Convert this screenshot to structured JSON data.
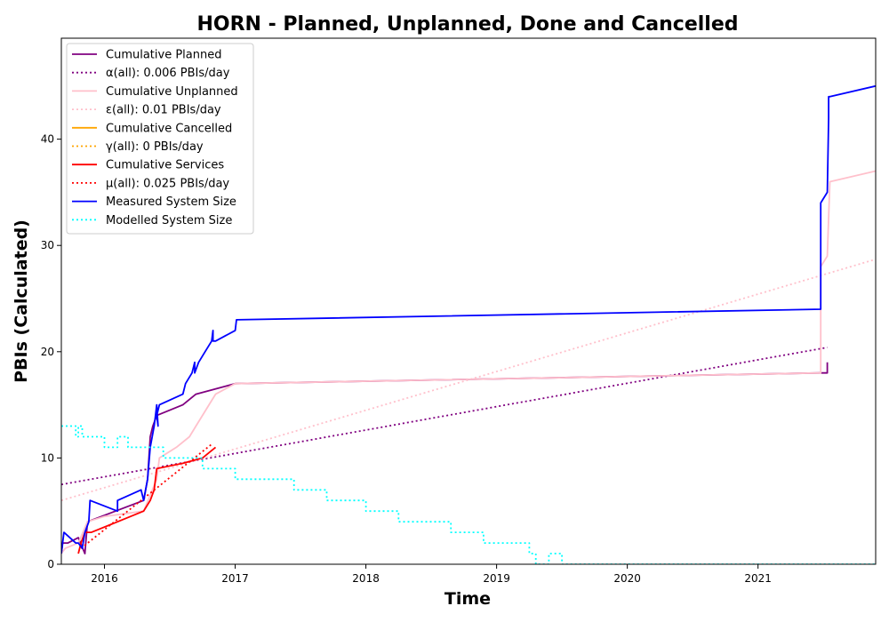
{
  "chart_data": {
    "type": "line",
    "title": "HORN - Planned, Unplanned, Done  and Cancelled",
    "xlabel": "Time",
    "ylabel": "PBIs (Calculated)",
    "xlim": [
      2015.67,
      2021.9
    ],
    "ylim": [
      0,
      49.5
    ],
    "x_ticks": [
      2016,
      2017,
      2018,
      2019,
      2020,
      2021
    ],
    "x_tick_labels": [
      "2016",
      "2017",
      "2018",
      "2019",
      "2020",
      "2021"
    ],
    "y_ticks": [
      0,
      10,
      20,
      30,
      40
    ],
    "y_tick_labels": [
      "0",
      "10",
      "20",
      "30",
      "40"
    ],
    "grid": false,
    "legend_position": "upper-left",
    "series": [
      {
        "name": "Cumulative Planned",
        "color": "#800080",
        "style": "solid",
        "x": [
          2015.67,
          2015.68,
          2015.72,
          2015.8,
          2015.85,
          2015.87,
          2016.3,
          2016.33,
          2016.35,
          2016.37,
          2016.4,
          2016.6,
          2016.7,
          2017.0,
          2021.48,
          2021.53,
          2021.53
        ],
        "y": [
          1,
          2,
          2,
          2.5,
          1,
          4,
          6,
          8,
          12,
          13,
          14,
          15,
          16,
          17,
          18,
          18,
          19
        ]
      },
      {
        "name": "α(all): 0.006 PBIs/day",
        "color": "#800080",
        "style": "dotted",
        "x": [
          2015.67,
          2021.53
        ],
        "y": [
          7.5,
          20.4
        ]
      },
      {
        "name": "Cumulative Unplanned",
        "color": "#ffc0cb",
        "style": "solid",
        "x": [
          2015.67,
          2015.7,
          2015.8,
          2015.87,
          2016.0,
          2016.3,
          2016.4,
          2016.42,
          2016.55,
          2016.65,
          2016.7,
          2016.8,
          2016.85,
          2017.0,
          2021.48,
          2021.48,
          2021.53,
          2021.55,
          2021.9
        ],
        "y": [
          1,
          1.5,
          2,
          4,
          4.5,
          5,
          8,
          10,
          11,
          12,
          13,
          15,
          16,
          17,
          18,
          28,
          29,
          36,
          37
        ]
      },
      {
        "name": "ε(all): 0.01 PBIs/day",
        "color": "#ffc0cb",
        "style": "dotted",
        "x": [
          2015.67,
          2021.9
        ],
        "y": [
          6,
          28.7
        ]
      },
      {
        "name": "Cumulative Cancelled",
        "color": "#ffa500",
        "style": "solid",
        "x": [],
        "y": []
      },
      {
        "name": "γ(all): 0 PBIs/day",
        "color": "#ffa500",
        "style": "dotted",
        "x": [],
        "y": []
      },
      {
        "name": "Cumulative Services",
        "color": "#ff0000",
        "style": "solid",
        "x": [
          2015.8,
          2015.82,
          2015.85,
          2015.9,
          2016.1,
          2016.3,
          2016.35,
          2016.38,
          2016.4,
          2016.6,
          2016.75,
          2016.85
        ],
        "y": [
          1,
          2,
          3,
          3,
          4,
          5,
          6,
          7,
          9,
          9.5,
          10,
          11
        ]
      },
      {
        "name": "μ(all): 0.025 PBIs/day",
        "color": "#ff0000",
        "style": "dotted",
        "x": [
          2015.82,
          2016.82
        ],
        "y": [
          1.5,
          11.3
        ]
      },
      {
        "name": "Measured System Size",
        "color": "#0000ff",
        "style": "solid",
        "x": [
          2015.67,
          2015.69,
          2015.78,
          2015.8,
          2015.83,
          2015.85,
          2015.88,
          2015.89,
          2016.1,
          2016.1,
          2016.28,
          2016.3,
          2016.33,
          2016.35,
          2016.38,
          2016.39,
          2016.4,
          2016.41,
          2016.4,
          2016.42,
          2016.6,
          2016.62,
          2016.67,
          2016.69,
          2016.69,
          2016.72,
          2016.77,
          2016.82,
          2016.83,
          2016.83,
          2016.85,
          2017.0,
          2017.01,
          2021.48,
          2021.48,
          2021.53,
          2021.54,
          2021.54,
          2021.55,
          2021.9
        ],
        "y": [
          1,
          3,
          2,
          2,
          1.5,
          3,
          4,
          6,
          5,
          6,
          7,
          6,
          8,
          11,
          13,
          14,
          15,
          13,
          14,
          15,
          16,
          17,
          18,
          19,
          18,
          19,
          20,
          21,
          22,
          21,
          21,
          22,
          23,
          24,
          34,
          35,
          42,
          44,
          44,
          45
        ]
      },
      {
        "name": "Modelled System Size",
        "color": "#00ffff",
        "style": "dotted",
        "step": true,
        "x": [
          2015.67,
          2015.78,
          2015.8,
          2015.83,
          2015.88,
          2016.0,
          2016.1,
          2016.18,
          2016.25,
          2016.35,
          2016.45,
          2016.55,
          2016.65,
          2016.75,
          2016.85,
          2017.0,
          2017.1,
          2017.3,
          2017.45,
          2017.55,
          2017.7,
          2017.85,
          2018.0,
          2018.15,
          2018.25,
          2018.35,
          2018.5,
          2018.65,
          2018.75,
          2018.9,
          2019.0,
          2019.15,
          2019.25,
          2019.3,
          2019.4,
          2019.5,
          2021.9
        ],
        "y": [
          13,
          12,
          13,
          12,
          12,
          11,
          12,
          11,
          11,
          11,
          10,
          10,
          10,
          9,
          9,
          8,
          8,
          8,
          7,
          7,
          6,
          6,
          5,
          5,
          4,
          4,
          4,
          3,
          3,
          2,
          2,
          2,
          1,
          0,
          1,
          0,
          0
        ]
      }
    ]
  }
}
